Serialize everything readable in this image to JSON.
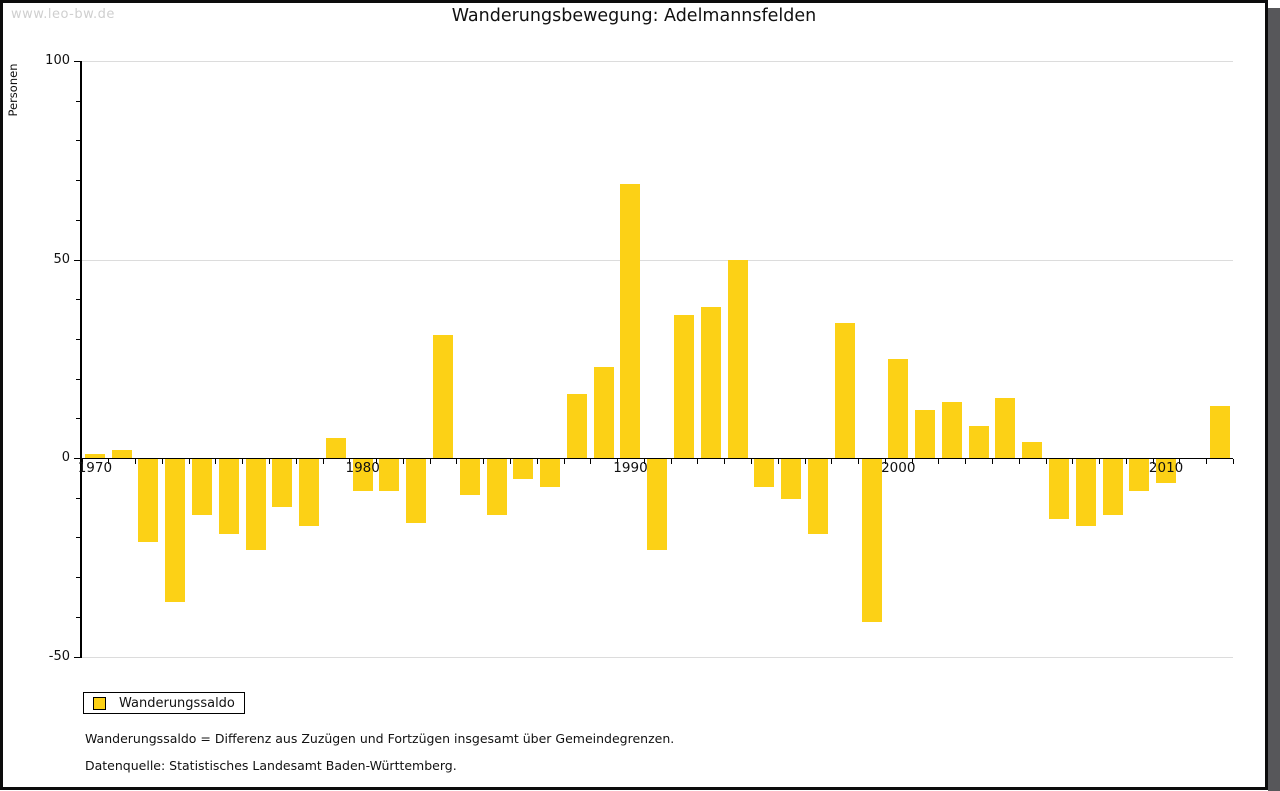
{
  "watermark": "www.leo-bw.de",
  "title": "Wanderungsbewegung: Adelmannsfelden",
  "legend": {
    "label": "Wanderungssaldo"
  },
  "footnotes": [
    "Wanderungssaldo = Differenz aus Zuzügen und Fortzügen insgesamt über Gemeindegrenzen.",
    "Datenquelle: Statistisches Landesamt Baden-Württemberg."
  ],
  "colors": {
    "bar": "#fcd116",
    "gridline": "#dcdcdc",
    "axis": "#000000",
    "watermark": "#cfcfcf"
  },
  "chart_data": {
    "type": "bar",
    "title": "Wanderungsbewegung: Adelmannsfelden",
    "xlabel": "",
    "ylabel": "Personen",
    "ylim": [
      -50,
      100
    ],
    "grid": true,
    "gridlines_at": [
      100,
      50,
      -50
    ],
    "ytick_values": [
      100,
      50,
      0,
      -50
    ],
    "ytick_labels": [
      "100",
      "50",
      "0",
      "-50"
    ],
    "ytick_minor_step": 10,
    "xtick_labels": [
      "1970",
      "1980",
      "1990",
      "2000",
      "2010"
    ],
    "legend_position": "bottom-left",
    "series_name": "Wanderungssaldo",
    "categories": [
      1970,
      1971,
      1972,
      1973,
      1974,
      1975,
      1976,
      1977,
      1978,
      1979,
      1980,
      1981,
      1982,
      1983,
      1984,
      1985,
      1986,
      1987,
      1988,
      1989,
      1990,
      1991,
      1992,
      1993,
      1994,
      1995,
      1996,
      1997,
      1998,
      1999,
      2000,
      2001,
      2002,
      2003,
      2004,
      2005,
      2006,
      2007,
      2008,
      2009,
      2010,
      2011,
      2012
    ],
    "values": [
      1,
      2,
      -21,
      -36,
      -14,
      -19,
      -23,
      -12,
      -17,
      5,
      -8,
      -8,
      -16,
      31,
      -9,
      -14,
      -5,
      -7,
      16,
      23,
      69,
      -23,
      36,
      38,
      50,
      -7,
      -10,
      -19,
      34,
      -41,
      25,
      12,
      14,
      8,
      15,
      4,
      -15,
      -17,
      -14,
      -8,
      -6,
      0,
      13
    ]
  }
}
